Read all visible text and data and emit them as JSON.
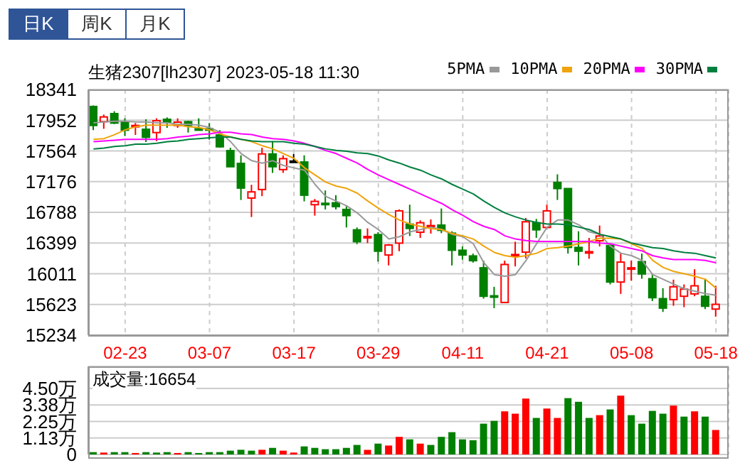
{
  "chart_data": [
    {
      "type": "candlestick",
      "title": "生猪2307[lh2307] 2023-05-18 11:30",
      "annotations": [
        "日K",
        "周K",
        "月K"
      ],
      "categories": [
        null,
        null,
        null,
        "02-23",
        null,
        null,
        null,
        null,
        null,
        null,
        null,
        "03-07",
        null,
        null,
        null,
        null,
        null,
        null,
        null,
        "03-17",
        null,
        null,
        null,
        null,
        null,
        null,
        null,
        "03-29",
        null,
        null,
        null,
        null,
        null,
        null,
        null,
        "04-11",
        null,
        null,
        null,
        null,
        null,
        null,
        null,
        "04-21",
        null,
        null,
        null,
        null,
        null,
        null,
        null,
        "05-08",
        null,
        null,
        null,
        null,
        null,
        null,
        null,
        "05-18"
      ],
      "ohlc": [
        [
          18126,
          18138,
          17826,
          17886
        ],
        [
          17934,
          18024,
          17844,
          17994
        ],
        [
          18036,
          18066,
          17904,
          17916
        ],
        [
          17928,
          17976,
          17754,
          17826
        ],
        [
          17868,
          17916,
          17766,
          17886
        ],
        [
          17838,
          17964,
          17676,
          17736
        ],
        [
          17796,
          17976,
          17688,
          17946
        ],
        [
          17964,
          17988,
          17856,
          17928
        ],
        [
          17886,
          17976,
          17856,
          17928
        ],
        [
          17934,
          17946,
          17796,
          17886
        ],
        [
          17844,
          17976,
          17820,
          17832
        ],
        [
          17844,
          17916,
          17706,
          17826
        ],
        [
          17766,
          17826,
          17604,
          17616
        ],
        [
          17568,
          17604,
          17364,
          17364
        ],
        [
          17406,
          17508,
          16944,
          17094
        ],
        [
          16968,
          17136,
          16728,
          17046
        ],
        [
          17076,
          17604,
          16992,
          17526
        ],
        [
          17526,
          17688,
          17286,
          17364
        ],
        [
          17328,
          17508,
          17286,
          17466
        ],
        [
          17436,
          17526,
          17436,
          17436
        ],
        [
          17424,
          17508,
          16926,
          17004
        ],
        [
          16884,
          16956,
          16746,
          16926
        ],
        [
          16902,
          17064,
          16824,
          16890
        ],
        [
          16908,
          17004,
          16824,
          16860
        ],
        [
          16824,
          16866,
          16596,
          16746
        ],
        [
          16566,
          16596,
          16386,
          16416
        ],
        [
          16470,
          16584,
          16398,
          16482
        ],
        [
          16506,
          16536,
          16164,
          16296
        ],
        [
          16248,
          16386,
          16116,
          16374
        ],
        [
          16398,
          16824,
          16296,
          16806
        ],
        [
          16638,
          16884,
          16488,
          16584
        ],
        [
          16536,
          16686,
          16464,
          16656
        ],
        [
          16608,
          16698,
          16518,
          16620
        ],
        [
          16626,
          16836,
          16524,
          16560
        ],
        [
          16524,
          16548,
          16116,
          16308
        ],
        [
          16308,
          16356,
          16188,
          16248
        ],
        [
          16236,
          16266,
          16152,
          16176
        ],
        [
          16086,
          16176,
          15696,
          15726
        ],
        [
          15732,
          15846,
          15576,
          15720
        ],
        [
          15648,
          16176,
          15648,
          16128
        ],
        [
          16242,
          16416,
          16104,
          16254
        ],
        [
          16284,
          16716,
          16206,
          16668
        ],
        [
          16656,
          16704,
          16464,
          16566
        ],
        [
          16596,
          16884,
          16584,
          16806
        ],
        [
          17166,
          17268,
          16944,
          17088
        ],
        [
          17088,
          17088,
          16266,
          16344
        ],
        [
          16344,
          16548,
          16116,
          16296
        ],
        [
          16278,
          16464,
          16200,
          16290
        ],
        [
          16428,
          16620,
          16356,
          16488
        ],
        [
          16368,
          16386,
          15876,
          15906
        ],
        [
          15906,
          16266,
          15756,
          16158
        ],
        [
          16074,
          16176,
          15924,
          16086
        ],
        [
          16164,
          16266,
          15948,
          16008
        ],
        [
          15948,
          16008,
          15666,
          15708
        ],
        [
          15696,
          15828,
          15528,
          15576
        ],
        [
          15684,
          15936,
          15606,
          15846
        ],
        [
          15726,
          15876,
          15588,
          15816
        ],
        [
          15756,
          16068,
          15726,
          15858
        ],
        [
          15726,
          15948,
          15564,
          15600
        ],
        [
          15564,
          15858,
          15468,
          15624
        ]
      ],
      "colors": [
        "#008000",
        "#ff0000",
        "#008000",
        "#008000",
        "#ff0000",
        "#008000",
        "#ff0000",
        "#008000",
        "#ff0000",
        "#008000",
        "#008000",
        "#008000",
        "#008000",
        "#008000",
        "#008000",
        "#ff0000",
        "#ff0000",
        "#008000",
        "#ff0000",
        "#000000",
        "#008000",
        "#ff0000",
        "#008000",
        "#008000",
        "#008000",
        "#008000",
        "#ff0000",
        "#008000",
        "#ff0000",
        "#ff0000",
        "#008000",
        "#ff0000",
        "#ff0000",
        "#008000",
        "#008000",
        "#008000",
        "#008000",
        "#008000",
        "#008000",
        "#ff0000",
        "#ff0000",
        "#ff0000",
        "#008000",
        "#ff0000",
        "#008000",
        "#008000",
        "#008000",
        "#ff0000",
        "#ff0000",
        "#008000",
        "#ff0000",
        "#ff0000",
        "#008000",
        "#008000",
        "#008000",
        "#ff0000",
        "#ff0000",
        "#ff0000",
        "#008000",
        "#ff0000"
      ],
      "series": [
        {
          "name": "5PMA",
          "type": "line",
          "color": "#999999",
          "values": [
            17920,
            17930,
            17940,
            17940,
            17930,
            17930,
            17920,
            17920,
            17900,
            17900,
            17890,
            17860,
            17800,
            17680,
            17530,
            17440,
            17410,
            17440,
            17380,
            17350,
            17320,
            17140,
            16990,
            16930,
            16870,
            16780,
            16660,
            16570,
            16450,
            16480,
            16540,
            16570,
            16600,
            16570,
            16510,
            16480,
            16390,
            16150,
            16000,
            15980,
            16000,
            16180,
            16390,
            16600,
            16690,
            16690,
            16630,
            16540,
            16510,
            16360,
            16270,
            16240,
            16180,
            16000,
            15940,
            15880,
            15820,
            15790,
            15760,
            15740
          ]
        },
        {
          "name": "10PMA",
          "type": "line",
          "color": "#f0a30a",
          "values": [
            17710,
            17720,
            17770,
            17830,
            17870,
            17890,
            17890,
            17890,
            17890,
            17870,
            17860,
            17830,
            17780,
            17740,
            17710,
            17680,
            17630,
            17590,
            17530,
            17470,
            17350,
            17260,
            17170,
            17120,
            17090,
            17030,
            16930,
            16840,
            16760,
            16690,
            16640,
            16610,
            16580,
            16570,
            16520,
            16490,
            16450,
            16360,
            16280,
            16240,
            16220,
            16240,
            16270,
            16330,
            16340,
            16360,
            16390,
            16420,
            16460,
            16460,
            16450,
            16390,
            16330,
            16180,
            16090,
            16040,
            16010,
            15980,
            15940,
            15830
          ]
        },
        {
          "name": "20PMA",
          "type": "line",
          "color": "#ff00ff",
          "values": [
            17680,
            17690,
            17700,
            17710,
            17710,
            17710,
            17710,
            17720,
            17740,
            17750,
            17770,
            17780,
            17800,
            17800,
            17780,
            17770,
            17740,
            17720,
            17710,
            17690,
            17660,
            17620,
            17570,
            17530,
            17470,
            17410,
            17330,
            17260,
            17200,
            17140,
            17080,
            17020,
            16960,
            16900,
            16820,
            16750,
            16670,
            16610,
            16570,
            16490,
            16450,
            16430,
            16420,
            16420,
            16420,
            16420,
            16420,
            16420,
            16400,
            16390,
            16360,
            16330,
            16300,
            16240,
            16210,
            16190,
            16190,
            16190,
            16180,
            16150
          ]
        },
        {
          "name": "30PMA",
          "type": "line",
          "color": "#007f3f",
          "values": [
            17590,
            17600,
            17620,
            17630,
            17650,
            17650,
            17660,
            17680,
            17690,
            17710,
            17720,
            17730,
            17740,
            17740,
            17710,
            17690,
            17680,
            17680,
            17680,
            17660,
            17650,
            17620,
            17590,
            17570,
            17560,
            17540,
            17530,
            17500,
            17450,
            17410,
            17360,
            17320,
            17260,
            17210,
            17140,
            17080,
            17020,
            16930,
            16850,
            16780,
            16730,
            16690,
            16660,
            16640,
            16640,
            16630,
            16600,
            16570,
            16510,
            16480,
            16450,
            16400,
            16370,
            16340,
            16330,
            16300,
            16280,
            16270,
            16240,
            16210
          ]
        }
      ],
      "ylim": [
        15234,
        18341
      ],
      "yticks": [
        15234,
        15623,
        16011,
        16399,
        16788,
        17176,
        17564,
        17952,
        18341
      ],
      "grid": true,
      "legend": "top right"
    },
    {
      "type": "bar",
      "title": "成交量:16654",
      "categories": [
        null,
        null,
        null,
        null,
        null,
        null,
        null,
        null,
        null,
        null,
        null,
        null,
        null,
        null,
        null,
        null,
        null,
        null,
        null,
        null,
        null,
        null,
        null,
        null,
        null,
        null,
        null,
        null,
        null,
        null,
        null,
        null,
        null,
        null,
        null,
        null,
        null,
        null,
        null,
        null,
        null,
        null,
        null,
        null,
        null,
        null,
        null,
        null,
        null,
        null,
        null,
        null,
        null,
        null,
        null,
        null,
        null,
        null,
        null,
        null
      ],
      "values": [
        0.16,
        0.13,
        0.16,
        0.16,
        0.1,
        0.16,
        0.13,
        0.16,
        0.1,
        0.16,
        0.1,
        0.16,
        0.16,
        0.26,
        0.32,
        0.26,
        0.32,
        0.45,
        0.26,
        0.13,
        0.55,
        0.45,
        0.36,
        0.36,
        0.45,
        0.65,
        0.32,
        0.74,
        0.61,
        1.2,
        1.03,
        0.74,
        0.65,
        1.2,
        1.52,
        1.03,
        0.97,
        2.1,
        2.29,
        2.94,
        2.78,
        3.81,
        2.49,
        3.13,
        2.49,
        3.84,
        3.59,
        2.49,
        2.68,
        3.07,
        4.01,
        2.68,
        2.1,
        2.97,
        2.78,
        3.33,
        2.58,
        2.94,
        2.58,
        1.67
      ],
      "colors": [
        "#008000",
        "#ff0000",
        "#008000",
        "#008000",
        "#ff0000",
        "#008000",
        "#008000",
        "#008000",
        "#ff0000",
        "#008000",
        "#008000",
        "#008000",
        "#008000",
        "#008000",
        "#008000",
        "#008000",
        "#ff0000",
        "#008000",
        "#ff0000",
        "#ff0000",
        "#008000",
        "#008000",
        "#008000",
        "#008000",
        "#008000",
        "#008000",
        "#ff0000",
        "#008000",
        "#ff0000",
        "#ff0000",
        "#008000",
        "#ff0000",
        "#008000",
        "#008000",
        "#008000",
        "#008000",
        "#008000",
        "#008000",
        "#008000",
        "#ff0000",
        "#ff0000",
        "#ff0000",
        "#008000",
        "#ff0000",
        "#ff0000",
        "#008000",
        "#008000",
        "#008000",
        "#ff0000",
        "#008000",
        "#ff0000",
        "#008000",
        "#008000",
        "#008000",
        "#008000",
        "#ff0000",
        "#008000",
        "#ff0000",
        "#008000",
        "#ff0000"
      ],
      "ylim": [
        0,
        6
      ],
      "yticks": [
        0,
        {
          "value": 1.13,
          "label": "1.13万"
        },
        {
          "value": 2.25,
          "label": "2.25万"
        },
        {
          "value": 3.38,
          "label": "3.38万"
        },
        {
          "value": 4.5,
          "label": "4.50万"
        }
      ],
      "grid": true,
      "tick_labels": "y"
    }
  ]
}
